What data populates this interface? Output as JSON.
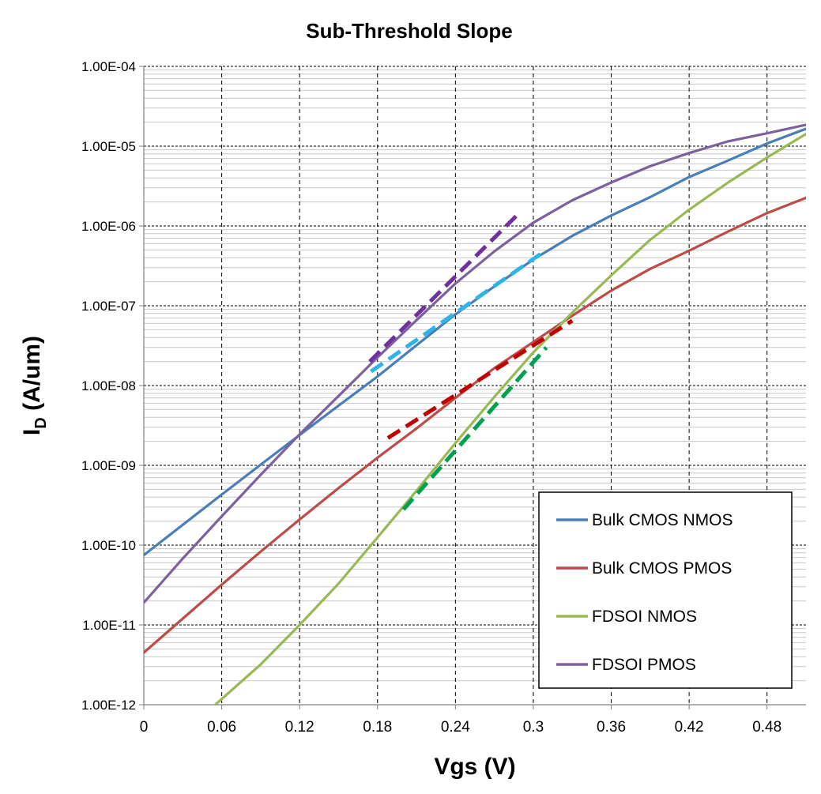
{
  "chart_data": {
    "type": "line",
    "title": "Sub-Threshold Slope",
    "xlabel": "Vgs (V)",
    "ylabel_main": "I",
    "ylabel_sub": "D",
    "ylabel_unit": " (A/um)",
    "y_scale": "log",
    "xlim": [
      0,
      0.51
    ],
    "ylim": [
      1e-12,
      0.0001
    ],
    "x_ticks": [
      {
        "value": 0,
        "label": "0"
      },
      {
        "value": 0.06,
        "label": "0.06"
      },
      {
        "value": 0.12,
        "label": "0.12"
      },
      {
        "value": 0.18,
        "label": "0.18"
      },
      {
        "value": 0.24,
        "label": "0.24"
      },
      {
        "value": 0.3,
        "label": "0.3"
      },
      {
        "value": 0.36,
        "label": "0.36"
      },
      {
        "value": 0.42,
        "label": "0.42"
      },
      {
        "value": 0.48,
        "label": "0.48"
      }
    ],
    "y_ticks": [
      {
        "value": 0.0001,
        "label": "1.00E-04"
      },
      {
        "value": 1e-05,
        "label": "1.00E-05"
      },
      {
        "value": 1e-06,
        "label": "1.00E-06"
      },
      {
        "value": 1e-07,
        "label": "1.00E-07"
      },
      {
        "value": 1e-08,
        "label": "1.00E-08"
      },
      {
        "value": 1e-09,
        "label": "1.00E-09"
      },
      {
        "value": 1e-10,
        "label": "1.00E-10"
      },
      {
        "value": 1e-11,
        "label": "1.00E-11"
      },
      {
        "value": 1e-12,
        "label": "1.00E-12"
      }
    ],
    "legend_position": "bottom-right",
    "series": [
      {
        "name": "Bulk CMOS NMOS",
        "color": "#4A7EBB",
        "points": [
          [
            0,
            7.5e-11
          ],
          [
            0.03,
            1.8e-10
          ],
          [
            0.06,
            4.3e-10
          ],
          [
            0.09,
            1.02e-09
          ],
          [
            0.12,
            2.4e-09
          ],
          [
            0.15,
            5.6e-09
          ],
          [
            0.18,
            1.3e-08
          ],
          [
            0.21,
            3.2e-08
          ],
          [
            0.24,
            7.8e-08
          ],
          [
            0.27,
            1.75e-07
          ],
          [
            0.3,
            3.8e-07
          ],
          [
            0.33,
            7.5e-07
          ],
          [
            0.36,
            1.35e-06
          ],
          [
            0.39,
            2.3e-06
          ],
          [
            0.42,
            4.1e-06
          ],
          [
            0.45,
            6.6e-06
          ],
          [
            0.48,
            1.08e-05
          ],
          [
            0.51,
            1.65e-05
          ]
        ]
      },
      {
        "name": "Bulk CMOS PMOS",
        "color": "#BE4B48",
        "points": [
          [
            0,
            4.5e-12
          ],
          [
            0.03,
            1.2e-11
          ],
          [
            0.06,
            3.2e-11
          ],
          [
            0.09,
            8.3e-11
          ],
          [
            0.12,
            2.1e-10
          ],
          [
            0.15,
            5.2e-10
          ],
          [
            0.18,
            1.25e-09
          ],
          [
            0.21,
            2.9e-09
          ],
          [
            0.24,
            7e-09
          ],
          [
            0.27,
            1.65e-08
          ],
          [
            0.3,
            3.5e-08
          ],
          [
            0.33,
            7.5e-08
          ],
          [
            0.36,
            1.55e-07
          ],
          [
            0.39,
            2.9e-07
          ],
          [
            0.42,
            4.9e-07
          ],
          [
            0.45,
            8.5e-07
          ],
          [
            0.48,
            1.45e-06
          ],
          [
            0.51,
            2.25e-06
          ]
        ]
      },
      {
        "name": "FDSOI NMOS",
        "color": "#98B954",
        "points": [
          [
            0.055,
            1e-12
          ],
          [
            0.09,
            3.2e-12
          ],
          [
            0.12,
            1e-11
          ],
          [
            0.15,
            3.3e-11
          ],
          [
            0.18,
            1.25e-10
          ],
          [
            0.21,
            4.8e-10
          ],
          [
            0.24,
            1.9e-09
          ],
          [
            0.27,
            7.2e-09
          ],
          [
            0.3,
            2.6e-08
          ],
          [
            0.33,
            8.2e-08
          ],
          [
            0.36,
            2.4e-07
          ],
          [
            0.39,
            6.7e-07
          ],
          [
            0.42,
            1.6e-06
          ],
          [
            0.45,
            3.5e-06
          ],
          [
            0.48,
            7.2e-06
          ],
          [
            0.51,
            1.42e-05
          ]
        ]
      },
      {
        "name": "FDSOI PMOS",
        "color": "#7D60A0",
        "points": [
          [
            0,
            1.9e-11
          ],
          [
            0.03,
            6.8e-11
          ],
          [
            0.06,
            2.3e-10
          ],
          [
            0.09,
            7.6e-10
          ],
          [
            0.12,
            2.45e-09
          ],
          [
            0.15,
            7.4e-09
          ],
          [
            0.18,
            2.25e-08
          ],
          [
            0.21,
            6.6e-08
          ],
          [
            0.24,
            1.9e-07
          ],
          [
            0.27,
            4.8e-07
          ],
          [
            0.3,
            1.1e-06
          ],
          [
            0.33,
            2.1e-06
          ],
          [
            0.36,
            3.5e-06
          ],
          [
            0.39,
            5.6e-06
          ],
          [
            0.42,
            8.2e-06
          ],
          [
            0.45,
            1.15e-05
          ],
          [
            0.48,
            1.45e-05
          ],
          [
            0.51,
            1.85e-05
          ]
        ]
      }
    ],
    "fit_lines": [
      {
        "color": "#7030A0",
        "points": [
          [
            0.174,
            2e-08
          ],
          [
            0.29,
            1.5e-06
          ]
        ]
      },
      {
        "color": "#2FB4E8",
        "points": [
          [
            0.175,
            1.5e-08
          ],
          [
            0.31,
            5e-07
          ]
        ]
      },
      {
        "color": "#C00000",
        "points": [
          [
            0.188,
            2.2e-09
          ],
          [
            0.33,
            6.5e-08
          ]
        ]
      },
      {
        "color": "#00A050",
        "points": [
          [
            0.2,
            2.8e-10
          ],
          [
            0.31,
            3e-08
          ]
        ]
      }
    ]
  }
}
